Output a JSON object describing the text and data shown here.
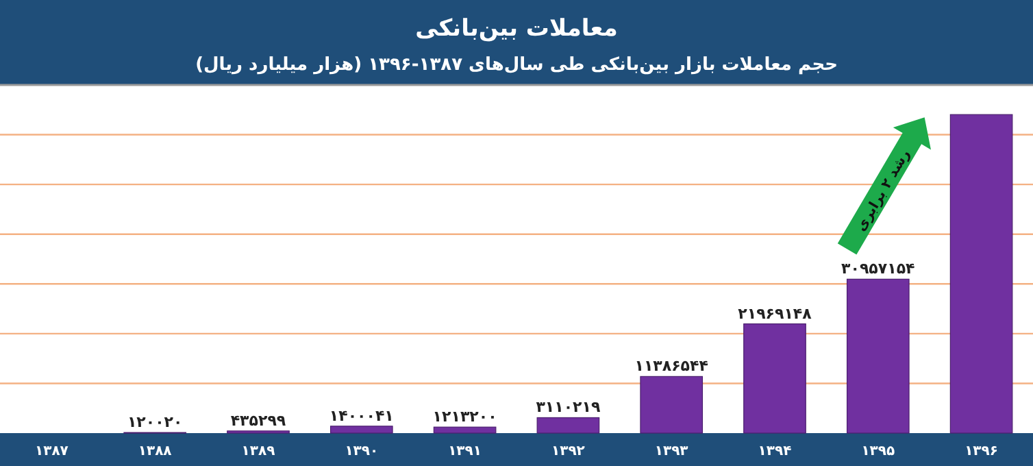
{
  "chart_data": {
    "type": "bar",
    "title": "معاملات بین‌بانکی",
    "subtitle": "حجم معاملات بازار بین‌بانکی طی سال‌های ۱۳۸۷-۱۳۹۶ (هزار میلیارد ریال)",
    "categories": [
      "۱۳۸۷",
      "۱۳۸۸",
      "۱۳۸۹",
      "۱۳۹۰",
      "۱۳۹۱",
      "۱۳۹۲",
      "۱۳۹۳",
      "۱۳۹۴",
      "۱۳۹۵",
      "۱۳۹۶"
    ],
    "values": [
      null,
      120020,
      435299,
      1400041,
      1213200,
      3110219,
      11386544,
      21969148,
      30957154,
      64050000
    ],
    "value_labels": [
      null,
      "۱۲۰۰۲۰",
      "۴۳۵۲۹۹",
      "۱۴۰۰۰۴۱",
      "۱۲۱۳۲۰۰",
      "۳۱۱۰۲۱۹",
      "۱۱۳۸۶۵۴۴",
      "۲۱۹۶۹۱۴۸",
      "۳۰۹۵۷۱۵۴",
      null
    ],
    "color": "#7030a0",
    "ylim": [
      0,
      70000000
    ],
    "yticks": [
      10000000,
      20000000,
      30000000,
      40000000,
      50000000,
      60000000
    ],
    "grid": "y",
    "tick_labels": "x",
    "annotations": [
      "رشد ۲ برابری"
    ]
  }
}
